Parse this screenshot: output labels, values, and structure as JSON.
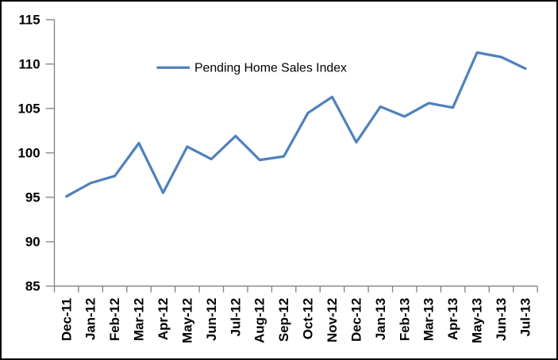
{
  "chart_data": {
    "type": "line",
    "title": "",
    "xlabel": "",
    "ylabel": "",
    "categories": [
      "Dec-11",
      "Jan-12",
      "Feb-12",
      "Mar-12",
      "Apr-12",
      "May-12",
      "Jun-12",
      "Jul-12",
      "Aug-12",
      "Sep-12",
      "Oct-12",
      "Nov-12",
      "Dec-12",
      "Jan-13",
      "Feb-13",
      "Mar-13",
      "Apr-13",
      "May-13",
      "Jun-13",
      "Jul-13"
    ],
    "series": [
      {
        "name": "Pending Home Sales Index",
        "values": [
          95.1,
          96.6,
          97.4,
          101.1,
          95.5,
          100.7,
          99.3,
          101.9,
          99.2,
          99.6,
          104.5,
          106.3,
          101.2,
          105.2,
          104.1,
          105.6,
          105.1,
          111.3,
          110.8,
          109.5
        ],
        "color": "#4F81BD"
      }
    ],
    "ylim": [
      85,
      115
    ],
    "ytick_step": 5,
    "ytick_labels": [
      "85",
      "90",
      "95",
      "100",
      "105",
      "110",
      "115"
    ],
    "grid": false,
    "legend_position": "top-center",
    "colors": {
      "line": "#4F81BD",
      "axis": "#808080",
      "labels": "#000000",
      "frame_border": "#000000",
      "background": "#ffffff"
    }
  }
}
